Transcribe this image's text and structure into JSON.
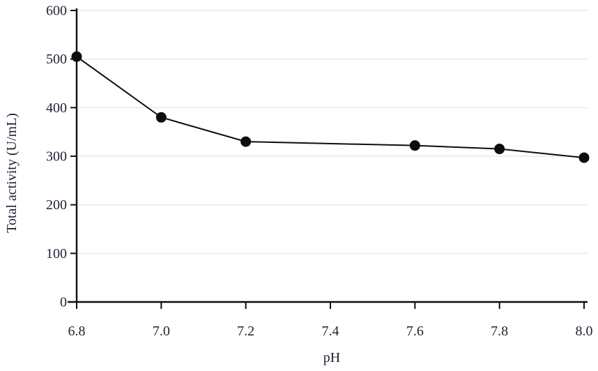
{
  "chart_data": {
    "type": "line",
    "title": "",
    "xlabel": "pH",
    "ylabel": "Total activity (U/mL)",
    "series": [
      {
        "name": "Total activity",
        "x": [
          6.8,
          7.0,
          7.2,
          7.6,
          7.8,
          8.0
        ],
        "y": [
          505,
          380,
          330,
          322,
          315,
          297
        ]
      }
    ],
    "xlim": [
      6.8,
      8.0
    ],
    "ylim": [
      0,
      600
    ],
    "x_tick_values": [
      6.8,
      7.0,
      7.2,
      7.4,
      7.6,
      7.8,
      8.0
    ],
    "x_tick_labels": [
      "6.8",
      "7.0",
      "7.2",
      "7.4",
      "7.6",
      "7.8",
      "8.0"
    ],
    "y_tick_values": [
      0,
      100,
      200,
      300,
      400,
      500,
      600
    ],
    "y_tick_labels": [
      "0",
      "100",
      "200",
      "300",
      "400",
      "500",
      "600"
    ],
    "grid": "horizontal",
    "legend": "none",
    "marker": "filled-circle",
    "colors": {
      "line": "#0d0d0d",
      "marker": "#0d0d0d",
      "axis": "#0d0d0d",
      "grid": "#e9e9e9",
      "text": "#1e2230",
      "background": "#ffffff"
    }
  }
}
